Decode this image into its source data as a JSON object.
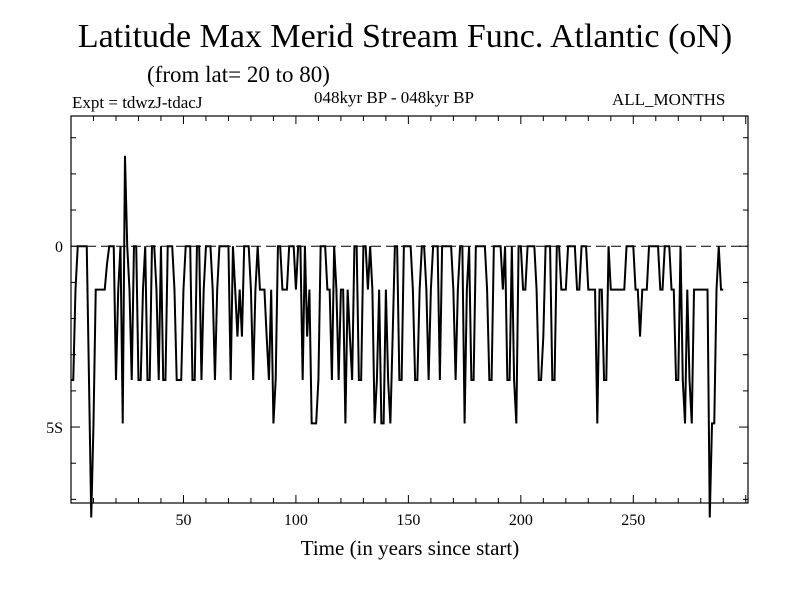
{
  "chart_data": {
    "type": "line",
    "title": "Latitude Max Merid Stream Func. Atlantic (oN)",
    "subtitle": "(from lat= 20 to 80)",
    "experiment": "Expt = tdwzJ-tdacJ",
    "period": "048kyr BP - 048kyr BP",
    "months": "ALL_MONTHS",
    "xlabel": "Time (in years since start)",
    "ylabel": "",
    "xlim": [
      0,
      301
    ],
    "ylim": [
      -7.1,
      3.6
    ],
    "x_ticks": [
      {
        "value": 50,
        "label": "50"
      },
      {
        "value": 100,
        "label": "100"
      },
      {
        "value": 150,
        "label": "150"
      },
      {
        "value": 200,
        "label": "200"
      },
      {
        "value": 250,
        "label": "250"
      }
    ],
    "y_ticks": [
      {
        "value": 0,
        "label": "0"
      },
      {
        "value": -5,
        "label": "5S"
      }
    ],
    "zero_line": "dashed",
    "series": [
      {
        "values": [
          -3.7,
          -3.7,
          -1.2,
          0,
          0,
          0,
          0,
          0,
          -3.7,
          -7.5,
          -4.9,
          -1.2,
          -1.2,
          -1.2,
          -1.2,
          -1.2,
          -0.5,
          0,
          0,
          0,
          -3.7,
          -1.2,
          0,
          -4.9,
          2.5,
          0,
          -1.2,
          -3.7,
          0,
          0,
          -3.7,
          -3.7,
          -1.2,
          0,
          -3.7,
          -3.7,
          0,
          0,
          -1.2,
          -3.7,
          0,
          -3.7,
          -3.7,
          0,
          0,
          0,
          -1.2,
          -3.7,
          -3.7,
          -3.7,
          -1.2,
          0,
          0,
          0,
          -3.7,
          -3.7,
          0,
          0,
          -3.7,
          -1.2,
          0,
          0,
          0,
          -1.2,
          -3.7,
          -1.2,
          0,
          0,
          0,
          0,
          0,
          -3.7,
          0,
          -1.2,
          -2.5,
          -1.2,
          -2.5,
          0,
          0,
          0,
          -1.2,
          -3.7,
          -1.2,
          0,
          -1.2,
          -1.2,
          -1.2,
          -2.5,
          -3.7,
          -1.2,
          -4.9,
          -3.7,
          0,
          0,
          -1.2,
          -1.2,
          -1.2,
          0,
          0,
          0,
          -1.2,
          0,
          0,
          -3.7,
          0,
          -2.5,
          -1.2,
          -4.9,
          -4.9,
          -4.9,
          -3.7,
          0,
          0,
          0,
          -1.2,
          -1.2,
          -3.7,
          0,
          -1.2,
          -3.7,
          -1.2,
          -1.2,
          -4.9,
          -1.2,
          -2.5,
          -3.7,
          0,
          0,
          -3.7,
          -3.7,
          0,
          0,
          -1.2,
          0,
          -1.2,
          -4.9,
          -3.7,
          -1.2,
          -4.9,
          -4.9,
          -1.2,
          -3.7,
          -4.9,
          -2.5,
          0,
          0,
          -3.7,
          -3.7,
          0,
          0,
          0,
          0,
          -1.2,
          -3.7,
          -3.7,
          -1.2,
          0,
          0,
          -1.2,
          -3.7,
          -1.2,
          0,
          0,
          0,
          -3.7,
          0,
          0,
          0,
          0,
          0,
          -1.2,
          -3.7,
          -1.2,
          0,
          0,
          -4.9,
          -1.2,
          0,
          -3.7,
          -3.7,
          0,
          0,
          0,
          0,
          0,
          -1.2,
          -3.7,
          -3.7,
          0,
          0,
          0,
          0,
          -1.2,
          0,
          -3.7,
          -3.7,
          0,
          -3.7,
          -4.9,
          0,
          0,
          -1.2,
          -1.2,
          0,
          0,
          0,
          0,
          -1.2,
          -3.7,
          -3.7,
          -2.5,
          0,
          0,
          0,
          -3.7,
          -3.7,
          0,
          0,
          -1.2,
          -1.2,
          -1.2,
          0,
          0,
          0,
          0,
          -1.2,
          -1.2,
          0,
          0,
          0,
          -1.2,
          -1.2,
          -1.2,
          -1.2,
          -4.9,
          -1.2,
          -1.2,
          -3.7,
          -3.7,
          0,
          -1.2,
          -1.2,
          -1.2,
          -1.2,
          -1.2,
          -1.2,
          -1.2,
          0,
          0,
          0,
          0,
          -1.2,
          -1.2,
          -2.5,
          -1.2,
          -1.2,
          -1.2,
          0,
          0,
          0,
          0,
          0,
          -1.2,
          -1.2,
          0,
          0,
          0,
          -1.2,
          -1.2,
          -3.7,
          -3.7,
          0,
          -3.7,
          -4.9,
          -1.2,
          -3.7,
          -4.9,
          -1.2,
          -1.2,
          -1.2,
          -1.2,
          -1.2,
          -1.2,
          -1.2,
          -7.5,
          -4.9,
          -4.9,
          -1.2,
          0,
          -1.2,
          -1.2
        ]
      }
    ]
  }
}
